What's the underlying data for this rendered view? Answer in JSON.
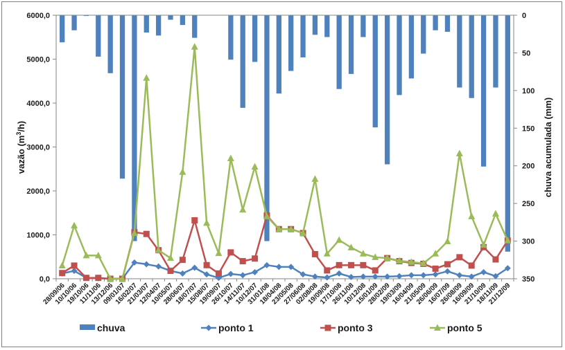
{
  "chart_data": {
    "type": "bar+line",
    "title": "",
    "categories": [
      "28/09/06",
      "10/10/06",
      "19/10/06",
      "11/11/06",
      "13/12/06",
      "09/01/07",
      "16/02/07",
      "21/03/07",
      "12/04/07",
      "10/05/07",
      "28/06/07",
      "18/07/07",
      "15/08/07",
      "19/09/07",
      "26/10/07",
      "14/11/07",
      "10/12/07",
      "31/01/08",
      "18/04/08",
      "23/05/08",
      "27/06/08",
      "02/08/08",
      "19/09/08",
      "17/10/08",
      "26/11/08",
      "10/12/08",
      "15/01/09",
      "28/02/09",
      "19/03/09",
      "16/04/09",
      "21/05/09",
      "26/06/09",
      "16/07/09",
      "26/08/09",
      "16/09/09",
      "21/10/09",
      "18/11/09",
      "21/12/09"
    ],
    "left_axis": {
      "label": "vazão (m³/h)",
      "label_prefix": "vazão (m",
      "label_sup": "3",
      "label_suffix": "/h)",
      "ylim": [
        0,
        6000
      ],
      "ticks": [
        "0,0",
        "1000,0",
        "2000,0",
        "3000,0",
        "4000,0",
        "5000,0",
        "6000,0"
      ],
      "tick_values": [
        0,
        1000,
        2000,
        3000,
        4000,
        5000,
        6000
      ]
    },
    "right_axis": {
      "label": "chuva acumulada (mm)",
      "ylim": [
        0,
        350
      ],
      "inverted": true,
      "ticks": [
        "0",
        "50",
        "100",
        "150",
        "200",
        "250",
        "300",
        "350"
      ],
      "tick_values": [
        0,
        50,
        100,
        150,
        200,
        250,
        300,
        350
      ]
    },
    "series": [
      {
        "name": "chuva",
        "type": "bar",
        "axis": "right",
        "color": "#4f81bd",
        "values": [
          36,
          20,
          1,
          55,
          77,
          217,
          300,
          23,
          27,
          6,
          13,
          30,
          0,
          0,
          59,
          123,
          62,
          300,
          104,
          74,
          56,
          26,
          29,
          98,
          78,
          29,
          149,
          198,
          106,
          84,
          51,
          20,
          22,
          96,
          110,
          201,
          96,
          314
        ]
      },
      {
        "name": "ponto 1",
        "type": "line",
        "axis": "left",
        "marker": "diamond",
        "color": "#4f81bd",
        "values": [
          120,
          180,
          20,
          10,
          0,
          0,
          370,
          330,
          280,
          180,
          120,
          250,
          100,
          20,
          110,
          80,
          150,
          310,
          270,
          270,
          100,
          50,
          30,
          120,
          40,
          50,
          50,
          50,
          60,
          80,
          80,
          100,
          170,
          80,
          50,
          150,
          60,
          240
        ]
      },
      {
        "name": "ponto 3",
        "type": "line",
        "axis": "left",
        "marker": "square",
        "color": "#c0504d",
        "values": [
          130,
          300,
          20,
          20,
          0,
          0,
          1060,
          1020,
          650,
          180,
          430,
          1330,
          310,
          120,
          600,
          400,
          460,
          1440,
          1130,
          1130,
          1040,
          560,
          190,
          310,
          310,
          310,
          190,
          470,
          400,
          360,
          340,
          230,
          330,
          490,
          300,
          720,
          440,
          870
        ]
      },
      {
        "name": "ponto 5",
        "type": "line",
        "axis": "left",
        "marker": "triangle",
        "color": "#9bbb59",
        "values": [
          300,
          1210,
          530,
          530,
          0,
          0,
          1040,
          4570,
          650,
          470,
          2430,
          5280,
          1270,
          580,
          2740,
          1570,
          2550,
          1420,
          1130,
          1130,
          1040,
          2270,
          570,
          880,
          710,
          570,
          490,
          470,
          410,
          380,
          350,
          570,
          850,
          2850,
          1420,
          770,
          1480,
          870
        ]
      }
    ],
    "legend": {
      "placement": "bottom",
      "entries": [
        "chuva",
        "ponto 1",
        "ponto 3",
        "ponto 5"
      ]
    },
    "grid": false
  }
}
